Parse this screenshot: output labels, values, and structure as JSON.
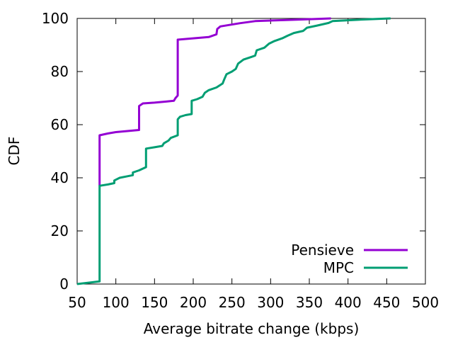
{
  "chart_data": {
    "type": "line",
    "title": "",
    "xlabel": "Average bitrate change (kbps)",
    "ylabel": "CDF",
    "xlim": [
      50,
      500
    ],
    "ylim": [
      0,
      100
    ],
    "x_ticks": [
      50,
      100,
      150,
      200,
      250,
      300,
      350,
      400,
      450,
      500
    ],
    "y_ticks": [
      0,
      20,
      40,
      60,
      80,
      100
    ],
    "grid": false,
    "legend_position": "bottom-right",
    "series": [
      {
        "name": "Pensieve",
        "color": "#9400d3",
        "points": [
          [
            79,
            37
          ],
          [
            79,
            56
          ],
          [
            90,
            56.7
          ],
          [
            100,
            57.2
          ],
          [
            115,
            57.6
          ],
          [
            130,
            58
          ],
          [
            130,
            67
          ],
          [
            135,
            68
          ],
          [
            150,
            68.3
          ],
          [
            165,
            68.7
          ],
          [
            175,
            69
          ],
          [
            177,
            70
          ],
          [
            180,
            71
          ],
          [
            180,
            92
          ],
          [
            200,
            92.5
          ],
          [
            220,
            93
          ],
          [
            230,
            94
          ],
          [
            231,
            96
          ],
          [
            235,
            97
          ],
          [
            260,
            98.2
          ],
          [
            280,
            99
          ],
          [
            320,
            99.4
          ],
          [
            350,
            99.7
          ],
          [
            378,
            100
          ]
        ]
      },
      {
        "name": "MPC",
        "color": "#009e73",
        "points": [
          [
            50,
            0
          ],
          [
            79,
            1
          ],
          [
            79,
            37
          ],
          [
            90,
            37.5
          ],
          [
            98,
            38
          ],
          [
            98,
            39
          ],
          [
            105,
            40
          ],
          [
            115,
            40.6
          ],
          [
            122,
            41
          ],
          [
            122,
            42
          ],
          [
            130,
            42.8
          ],
          [
            139,
            44
          ],
          [
            139,
            51
          ],
          [
            150,
            51.5
          ],
          [
            160,
            52
          ],
          [
            162,
            53
          ],
          [
            168,
            54
          ],
          [
            171,
            55
          ],
          [
            180,
            56
          ],
          [
            180,
            62
          ],
          [
            183,
            63
          ],
          [
            190,
            63.6
          ],
          [
            198,
            64
          ],
          [
            198,
            69
          ],
          [
            205,
            69.6
          ],
          [
            212,
            70.5
          ],
          [
            215,
            72
          ],
          [
            220,
            73
          ],
          [
            230,
            74
          ],
          [
            238,
            75.5
          ],
          [
            240,
            77
          ],
          [
            243,
            79
          ],
          [
            250,
            80
          ],
          [
            255,
            81
          ],
          [
            258,
            83
          ],
          [
            265,
            84.5
          ],
          [
            275,
            85.5
          ],
          [
            280,
            86
          ],
          [
            282,
            88
          ],
          [
            292,
            89
          ],
          [
            298,
            90.5
          ],
          [
            305,
            91.5
          ],
          [
            315,
            92.5
          ],
          [
            322,
            93.5
          ],
          [
            330,
            94.5
          ],
          [
            342,
            95.3
          ],
          [
            347,
            96.5
          ],
          [
            360,
            97.3
          ],
          [
            375,
            98.3
          ],
          [
            380,
            99
          ],
          [
            400,
            99.3
          ],
          [
            420,
            99.6
          ],
          [
            455,
            100
          ]
        ]
      }
    ]
  }
}
